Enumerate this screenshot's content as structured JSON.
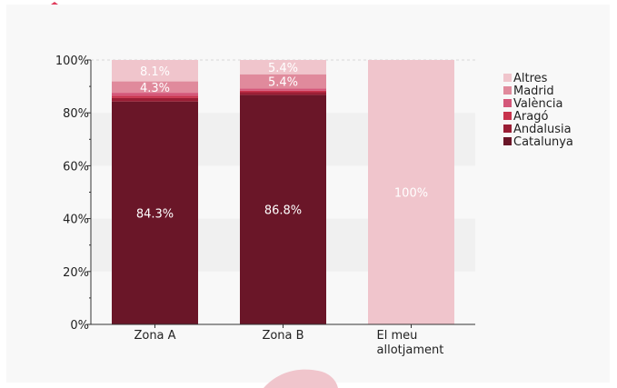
{
  "chart_data": {
    "type": "bar",
    "stacked": true,
    "categories": [
      "Zona A",
      "Zona B",
      "El meu\nallotjament"
    ],
    "series": [
      {
        "name": "Catalunya",
        "color": "#6a1628",
        "values": [
          84.3,
          86.8,
          0
        ]
      },
      {
        "name": "Andalusia",
        "color": "#9a1e35",
        "values": [
          1.3,
          1.0,
          0
        ]
      },
      {
        "name": "Aragó",
        "color": "#c8324c",
        "values": [
          0.9,
          0.6,
          0
        ]
      },
      {
        "name": "València",
        "color": "#d4587a",
        "values": [
          1.1,
          0.8,
          0
        ]
      },
      {
        "name": "Madrid",
        "color": "#e08a9c",
        "values": [
          4.3,
          5.4,
          0
        ]
      },
      {
        "name": "Altres",
        "color": "#f0c5cc",
        "values": [
          8.1,
          5.4,
          100
        ]
      }
    ],
    "data_labels": [
      {
        "series": "Catalunya",
        "labels": [
          "84.3%",
          "86.8%",
          ""
        ]
      },
      {
        "series": "Madrid",
        "labels": [
          "4.3%",
          "5.4%",
          ""
        ]
      },
      {
        "series": "Altres",
        "labels": [
          "8.1%",
          "5.4%",
          "100%"
        ]
      }
    ],
    "ylim": [
      0,
      100
    ],
    "yticks": [
      "0%",
      "20%",
      "40%",
      "60%",
      "80%",
      "100%"
    ],
    "legend_position": "right",
    "grid": "alternating horizontal bands",
    "xlabel": "",
    "ylabel": ""
  }
}
